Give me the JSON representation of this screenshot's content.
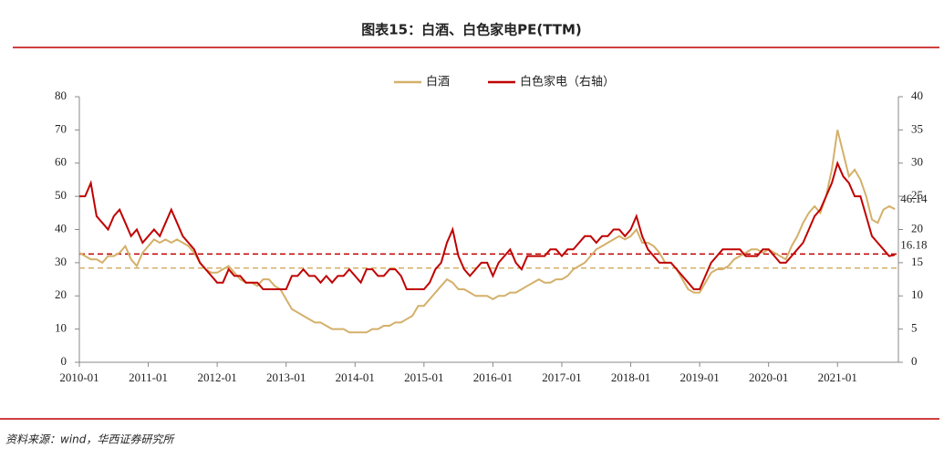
{
  "chart_data": {
    "type": "line",
    "title": "图表15：白酒、白色家电PE(TTM)",
    "source": "资料来源：wind，华西证券研究所",
    "x": [
      "2010-01",
      "2010-02",
      "2010-03",
      "2010-04",
      "2010-05",
      "2010-06",
      "2010-07",
      "2010-08",
      "2010-09",
      "2010-10",
      "2010-11",
      "2010-12",
      "2011-01",
      "2011-02",
      "2011-03",
      "2011-04",
      "2011-05",
      "2011-06",
      "2011-07",
      "2011-08",
      "2011-09",
      "2011-10",
      "2011-11",
      "2011-12",
      "2012-01",
      "2012-02",
      "2012-03",
      "2012-04",
      "2012-05",
      "2012-06",
      "2012-07",
      "2012-08",
      "2012-09",
      "2012-10",
      "2012-11",
      "2012-12",
      "2013-01",
      "2013-02",
      "2013-03",
      "2013-04",
      "2013-05",
      "2013-06",
      "2013-07",
      "2013-08",
      "2013-09",
      "2013-10",
      "2013-11",
      "2013-12",
      "2014-01",
      "2014-02",
      "2014-03",
      "2014-04",
      "2014-05",
      "2014-06",
      "2014-07",
      "2014-08",
      "2014-09",
      "2014-10",
      "2014-11",
      "2014-12",
      "2015-01",
      "2015-02",
      "2015-03",
      "2015-04",
      "2015-05",
      "2015-06",
      "2015-07",
      "2015-08",
      "2015-09",
      "2015-10",
      "2015-11",
      "2015-12",
      "2016-01",
      "2016-02",
      "2016-03",
      "2016-04",
      "2016-05",
      "2016-06",
      "2016-07",
      "2016-08",
      "2016-09",
      "2016-10",
      "2016-11",
      "2016-12",
      "2017-01",
      "2017-02",
      "2017-03",
      "2017-04",
      "2017-05",
      "2017-06",
      "2017-07",
      "2017-08",
      "2017-09",
      "2017-10",
      "2017-11",
      "2017-12",
      "2018-01",
      "2018-02",
      "2018-03",
      "2018-04",
      "2018-05",
      "2018-06",
      "2018-07",
      "2018-08",
      "2018-09",
      "2018-10",
      "2018-11",
      "2018-12",
      "2019-01",
      "2019-02",
      "2019-03",
      "2019-04",
      "2019-05",
      "2019-06",
      "2019-07",
      "2019-08",
      "2019-09",
      "2019-10",
      "2019-11",
      "2019-12",
      "2020-01",
      "2020-02",
      "2020-03",
      "2020-04",
      "2020-05",
      "2020-06",
      "2020-07",
      "2020-08",
      "2020-09",
      "2020-10",
      "2020-11",
      "2020-12",
      "2021-01",
      "2021-02",
      "2021-03",
      "2021-04",
      "2021-05",
      "2021-06",
      "2021-07",
      "2021-08",
      "2021-09",
      "2021-10",
      "2021-11"
    ],
    "xticks": [
      "2010-01",
      "2011-01",
      "2012-01",
      "2013-01",
      "2014-01",
      "2015-01",
      "2016-01",
      "2017-01",
      "2018-01",
      "2019-01",
      "2020-01",
      "2021-01"
    ],
    "series": [
      {
        "name": "白酒",
        "color": "#d4b06a",
        "axis": "y",
        "values": [
          33,
          32,
          31,
          31,
          30,
          32,
          32,
          33,
          35,
          31,
          29,
          33,
          35,
          37,
          36,
          37,
          36,
          37,
          36,
          35,
          33,
          30,
          28,
          27,
          27,
          28,
          29,
          27,
          25,
          24,
          24,
          23,
          25,
          25,
          23,
          22,
          19,
          16,
          15,
          14,
          13,
          12,
          12,
          11,
          10,
          10,
          10,
          9,
          9,
          9,
          9,
          10,
          10,
          11,
          11,
          12,
          12,
          13,
          14,
          17,
          17,
          19,
          21,
          23,
          25,
          24,
          22,
          22,
          21,
          20,
          20,
          20,
          19,
          20,
          20,
          21,
          21,
          22,
          23,
          24,
          25,
          24,
          24,
          25,
          25,
          26,
          28,
          29,
          30,
          32,
          34,
          35,
          36,
          37,
          38,
          37,
          38,
          40,
          36,
          36,
          35,
          33,
          30,
          30,
          28,
          25,
          22,
          21,
          21,
          24,
          27,
          28,
          28,
          29,
          31,
          32,
          33,
          34,
          34,
          33,
          34,
          33,
          32,
          31,
          35,
          38,
          42,
          45,
          47,
          45,
          50,
          58,
          70,
          63,
          56,
          58,
          55,
          50,
          43,
          42,
          46,
          47,
          46.14
        ]
      },
      {
        "name": "白色家电（右轴）",
        "color": "#c00000",
        "axis": "y2",
        "values": [
          25,
          25,
          27,
          22,
          21,
          20,
          22,
          23,
          21,
          19,
          20,
          18,
          19,
          20,
          19,
          21,
          23,
          21,
          19,
          18,
          17,
          15,
          14,
          13,
          12,
          12,
          14,
          13,
          13,
          12,
          12,
          12,
          11,
          11,
          11,
          11,
          11,
          13,
          13,
          14,
          13,
          13,
          12,
          13,
          12,
          13,
          13,
          14,
          13,
          12,
          14,
          14,
          13,
          13,
          14,
          14,
          13,
          11,
          11,
          11,
          11,
          12,
          14,
          15,
          18,
          20,
          16,
          14,
          13,
          14,
          15,
          15,
          13,
          15,
          16,
          17,
          15,
          14,
          16,
          16,
          16,
          16,
          17,
          17,
          16,
          17,
          17,
          18,
          19,
          19,
          18,
          19,
          19,
          20,
          20,
          19,
          20,
          22,
          19,
          17,
          16,
          15,
          15,
          15,
          14,
          13,
          12,
          11,
          11,
          13,
          15,
          16,
          17,
          17,
          17,
          17,
          16,
          16,
          16,
          17,
          17,
          16,
          15,
          15,
          16,
          17,
          18,
          20,
          22,
          23,
          25,
          27,
          30,
          28,
          27,
          25,
          25,
          22,
          19,
          18,
          17,
          16,
          16.18
        ]
      }
    ],
    "ylim": [
      0,
      80
    ],
    "yticks": [
      0,
      10,
      20,
      30,
      40,
      50,
      60,
      70,
      80
    ],
    "y2lim": [
      0,
      40
    ],
    "y2ticks": [
      0,
      5,
      10,
      15,
      20,
      25,
      30,
      35,
      40
    ],
    "ref_lines": [
      {
        "axis": "y",
        "value": 28.4,
        "color": "#d4b06a"
      },
      {
        "axis": "y2",
        "value": 16.3,
        "color": "#c00000"
      }
    ]
  }
}
